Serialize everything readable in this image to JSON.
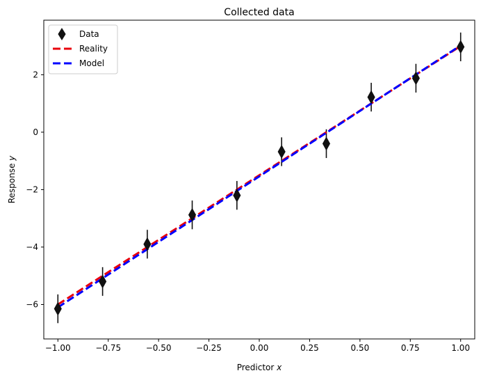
{
  "chart_data": {
    "type": "line",
    "title": "Collected data",
    "xlabel": "Predictor",
    "xlabel_var": "x",
    "ylabel": "Response",
    "ylabel_var": "y",
    "xlim": [
      -1.07,
      1.07
    ],
    "ylim": [
      -7.2,
      3.9
    ],
    "xticks": [
      -1.0,
      -0.75,
      -0.5,
      -0.25,
      0.0,
      0.25,
      0.5,
      0.75,
      1.0
    ],
    "xtick_labels": [
      "−1.00",
      "−0.75",
      "−0.50",
      "−0.25",
      "0.00",
      "0.25",
      "0.50",
      "0.75",
      "1.00"
    ],
    "yticks": [
      -6,
      -4,
      -2,
      0,
      2
    ],
    "ytick_labels": [
      "−6",
      "−4",
      "−2",
      "0",
      "2"
    ],
    "grid": false,
    "legend_position": "top-left",
    "legend": [
      {
        "label": "Data",
        "kind": "marker",
        "color": "#111111"
      },
      {
        "label": "Reality",
        "kind": "line",
        "color": "#e8000b"
      },
      {
        "label": "Model",
        "kind": "line",
        "color": "#0000ff"
      }
    ],
    "series": [
      {
        "name": "Data",
        "kind": "errorbar",
        "color": "#111111",
        "x": [
          -1.0,
          -0.778,
          -0.556,
          -0.333,
          -0.111,
          0.111,
          0.333,
          0.556,
          0.778,
          1.0
        ],
        "y": [
          -6.15,
          -5.2,
          -3.9,
          -2.88,
          -2.2,
          -0.68,
          -0.4,
          1.22,
          1.88,
          2.97
        ],
        "yerr": 0.5
      },
      {
        "name": "Reality",
        "kind": "line",
        "color": "#e8000b",
        "x": [
          -1.0,
          1.0
        ],
        "y": [
          -6.0,
          3.0
        ]
      },
      {
        "name": "Model",
        "kind": "line",
        "color": "#0000ff",
        "x": [
          -1.0,
          1.0
        ],
        "y": [
          -6.1,
          3.02
        ]
      }
    ]
  }
}
